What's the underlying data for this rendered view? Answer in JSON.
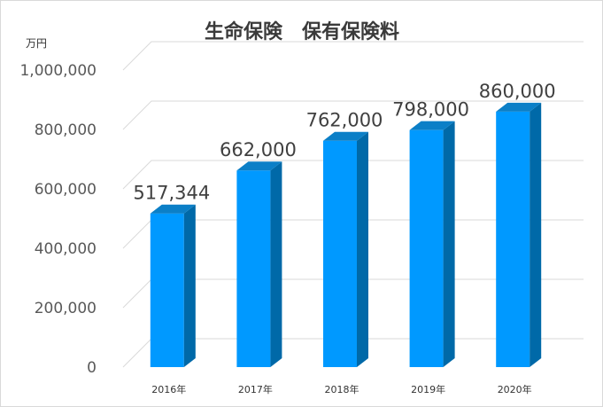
{
  "chart_data": {
    "type": "bar",
    "title": "生命保険　保有保険料",
    "unit_label": "万円",
    "categories": [
      "2016年",
      "2017年",
      "2018年",
      "2019年",
      "2020年"
    ],
    "values": [
      517344,
      662000,
      762000,
      798000,
      860000
    ],
    "data_labels": [
      "517,344",
      "662,000",
      "762,000",
      "798,000",
      "860,000"
    ],
    "y_ticks": [
      "0",
      "200,000",
      "400,000",
      "600,000",
      "800,000",
      "1,000,000"
    ],
    "ylim": [
      0,
      1000000
    ],
    "grid": true,
    "legend": "none",
    "style": "3d-column"
  },
  "colors": {
    "bar_front": "#0099ff",
    "bar_top": "#0b7fc7",
    "bar_side": "#0069a8"
  }
}
